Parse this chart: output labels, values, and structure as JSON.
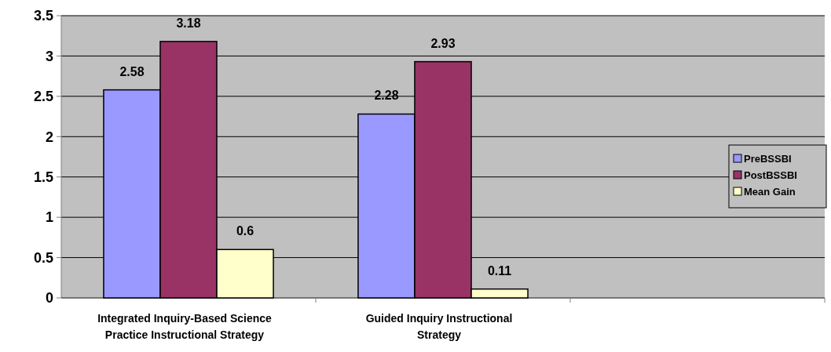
{
  "chart_data": {
    "type": "bar",
    "categories": [
      "Integrated Inquiry-Based Science Practice Instructional Strategy",
      "Guided Inquiry Instructional Strategy",
      null
    ],
    "series": [
      {
        "name": "PreBSSBI",
        "color": "#9999ff",
        "values": [
          2.58,
          2.28,
          null
        ]
      },
      {
        "name": "PostBSSBI",
        "color": "#993366",
        "values": [
          3.18,
          2.93,
          null
        ]
      },
      {
        "name": "Mean Gain",
        "color": "#ffffcc",
        "values": [
          0.6,
          0.11,
          null
        ]
      }
    ],
    "ylim": [
      0,
      3.5
    ],
    "yticks": [
      0,
      0.5,
      1,
      1.5,
      2,
      2.5,
      3,
      3.5
    ],
    "grid": "y",
    "legend": "right",
    "data_labels": true
  }
}
